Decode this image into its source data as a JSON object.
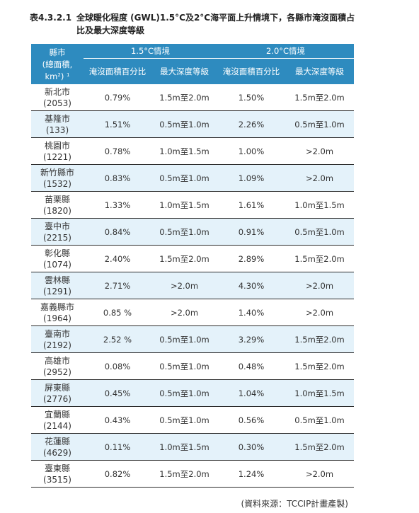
{
  "caption": {
    "number": "表4.3.2.1",
    "title_line1": "全球暖化程度 (GWL)1.5°C及2°C海平面上升情境下，各縣市淹沒面積占",
    "title_line2": "比及最大深度等級"
  },
  "header": {
    "county_line1": "縣市",
    "county_line2": "(總面積,",
    "county_line3": "km",
    "county_sup_unit": "2",
    "county_line3_end": ")",
    "county_sup_note": "1",
    "scenario_15": "1.5°C情境",
    "scenario_20": "2.0°C情境",
    "col_area_pct": "淹沒面積百分比",
    "col_max_depth": "最大深度等級"
  },
  "rows": [
    {
      "county": "新北市",
      "area": "(2053)",
      "s15_pct": "0.79%",
      "s15_depth": "1.5m至2.0m",
      "s20_pct": "1.50%",
      "s20_depth": "1.5m至2.0m"
    },
    {
      "county": "基隆市",
      "area": "(133)",
      "s15_pct": "1.51%",
      "s15_depth": "0.5m至1.0m",
      "s20_pct": "2.26%",
      "s20_depth": "0.5m至1.0m"
    },
    {
      "county": "桃園市",
      "area": "(1221)",
      "s15_pct": "0.78%",
      "s15_depth": "1.0m至1.5m",
      "s20_pct": "1.00%",
      "s20_depth": ">2.0m"
    },
    {
      "county": "新竹縣市",
      "area": "(1532)",
      "s15_pct": "0.83%",
      "s15_depth": "0.5m至1.0m",
      "s20_pct": "1.09%",
      "s20_depth": ">2.0m"
    },
    {
      "county": "苗栗縣",
      "area": "(1820)",
      "s15_pct": "1.33%",
      "s15_depth": "1.0m至1.5m",
      "s20_pct": "1.61%",
      "s20_depth": "1.0m至1.5m"
    },
    {
      "county": "臺中市",
      "area": "(2215)",
      "s15_pct": "0.84%",
      "s15_depth": "0.5m至1.0m",
      "s20_pct": "0.91%",
      "s20_depth": "0.5m至1.0m"
    },
    {
      "county": "彰化縣",
      "area": "(1074)",
      "s15_pct": "2.40%",
      "s15_depth": "1.5m至2.0m",
      "s20_pct": "2.89%",
      "s20_depth": "1.5m至2.0m"
    },
    {
      "county": "雲林縣",
      "area": "(1291)",
      "s15_pct": "2.71%",
      "s15_depth": ">2.0m",
      "s20_pct": "4.30%",
      "s20_depth": ">2.0m"
    },
    {
      "county": "嘉義縣市",
      "area": "(1964)",
      "s15_pct": "0.85 %",
      "s15_depth": ">2.0m",
      "s20_pct": "1.40%",
      "s20_depth": ">2.0m"
    },
    {
      "county": "臺南市",
      "area": "(2192)",
      "s15_pct": "2.52 %",
      "s15_depth": "0.5m至1.0m",
      "s20_pct": "3.29%",
      "s20_depth": "1.5m至2.0m"
    },
    {
      "county": "高雄市",
      "area": "(2952)",
      "s15_pct": "0.08%",
      "s15_depth": "0.5m至1.0m",
      "s20_pct": "0.48%",
      "s20_depth": "1.5m至2.0m"
    },
    {
      "county": "屏東縣",
      "area": "(2776)",
      "s15_pct": "0.45%",
      "s15_depth": "0.5m至1.0m",
      "s20_pct": "1.04%",
      "s20_depth": "1.0m至1.5m"
    },
    {
      "county": "宜蘭縣",
      "area": "(2144)",
      "s15_pct": "0.43%",
      "s15_depth": "0.5m至1.0m",
      "s20_pct": "0.56%",
      "s20_depth": "0.5m至1.0m"
    },
    {
      "county": "花蓮縣",
      "area": "(4629)",
      "s15_pct": "0.11%",
      "s15_depth": "1.0m至1.5m",
      "s20_pct": "0.30%",
      "s20_depth": "1.5m至2.0m"
    },
    {
      "county": "臺東縣",
      "area": "(3515)",
      "s15_pct": "0.82%",
      "s15_depth": "1.5m至2.0m",
      "s20_pct": "1.24%",
      "s20_depth": ">2.0m"
    }
  ],
  "source_note": "(資料來源：TCCIP計畫產製)",
  "colors": {
    "header_bg": "#2e8bbf",
    "stripe_bg": "#e4f2fa",
    "row_rule": "#2b2b2b"
  }
}
